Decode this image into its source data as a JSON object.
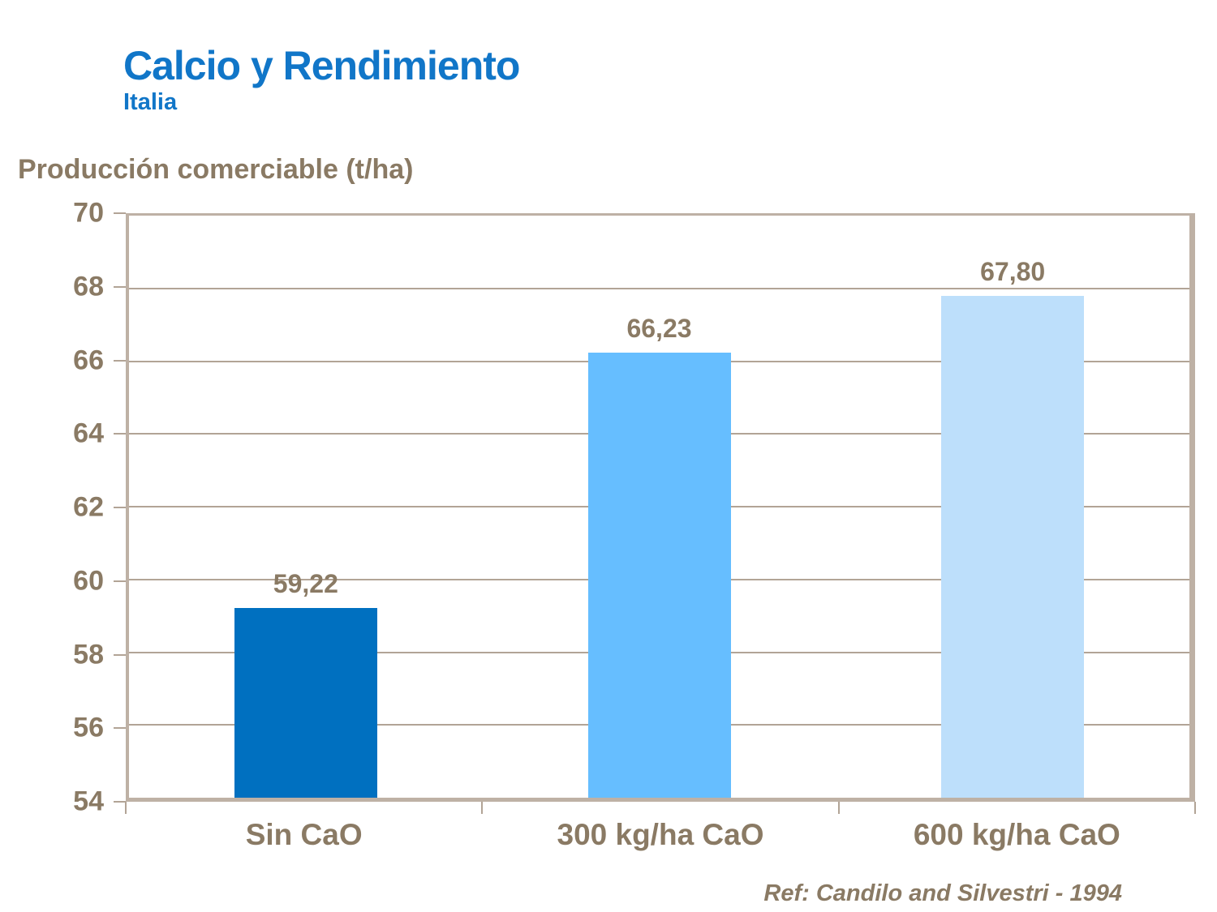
{
  "header": {
    "title": "Calcio y Rendimiento",
    "subtitle": "Italia"
  },
  "chart_data": {
    "type": "bar",
    "title": "Producción comerciable (t/ha)",
    "categories": [
      "Sin CaO",
      "300 kg/ha CaO",
      "600 kg/ha CaO"
    ],
    "values": [
      59.22,
      66.23,
      67.8
    ],
    "value_labels": [
      "59,22",
      "66,23",
      "67,80"
    ],
    "bar_colors": [
      "#0070C0",
      "#66BEFF",
      "#BDDFFB"
    ],
    "ylim": [
      54,
      70
    ],
    "ytick_step": 2,
    "yticks": [
      "70",
      "68",
      "66",
      "64",
      "62",
      "60",
      "58",
      "56",
      "54"
    ],
    "grid": true,
    "legend": "none"
  },
  "footer": {
    "reference": "Ref: Candilo and Silvestri - 1994"
  },
  "colors": {
    "blue": "#1176C8",
    "brown": "#8A7A64",
    "tan": "#BEB1A5",
    "grid": "#B2A496",
    "bg": "#FFFFFF"
  }
}
